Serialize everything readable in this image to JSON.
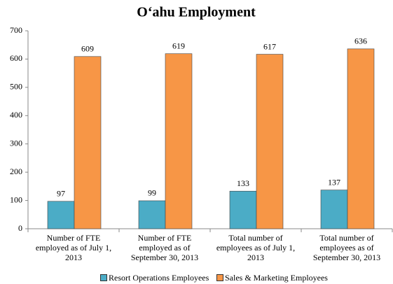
{
  "chart_data": {
    "type": "bar",
    "title": "O‘ahu Employment",
    "categories": [
      "Number of FTE employed as of July 1, 2013",
      "Number of FTE employed as of September 30, 2013",
      "Total number of employees as of July 1, 2013",
      "Total number of employees as of September 30, 2013"
    ],
    "series": [
      {
        "name": "Resort Operations Employees",
        "color": "#4bacc6",
        "values": [
          97,
          99,
          133,
          137
        ]
      },
      {
        "name": "Sales & Marketing Employees",
        "color": "#f79646",
        "values": [
          609,
          619,
          617,
          636
        ]
      }
    ],
    "ylim": [
      0,
      700
    ],
    "yticks": [
      0,
      100,
      200,
      300,
      400,
      500,
      600,
      700
    ],
    "grid": false,
    "legend": "bottom"
  }
}
